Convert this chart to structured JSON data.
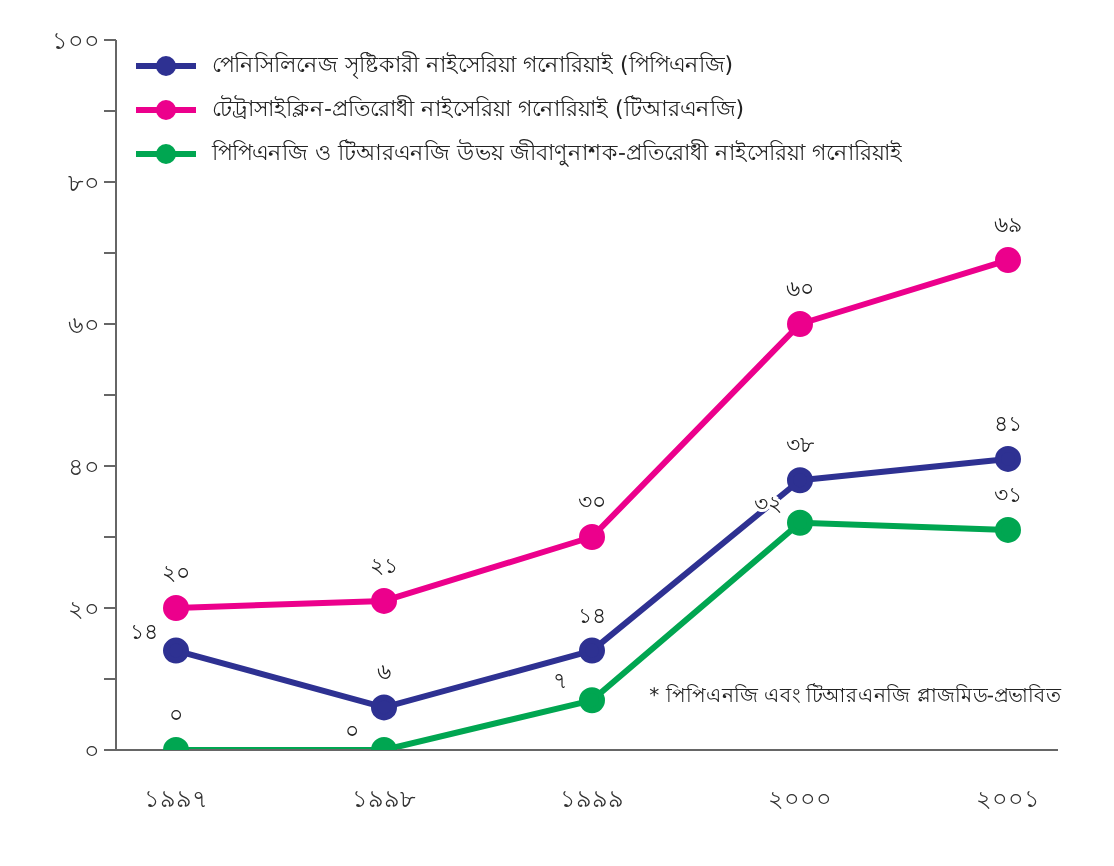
{
  "chart_data": {
    "type": "line",
    "categories": [
      "১৯৯৭",
      "১৯৯৮",
      "১৯৯৯",
      "২০০০",
      "২০০১"
    ],
    "series": [
      {
        "name": "পেনিসিলিনেজ সৃষ্টিকারী নাইসেরিয়া গনোরিয়াই (পিপিএনজি)",
        "color": "#2e3192",
        "values": [
          14,
          6,
          14,
          38,
          41
        ],
        "value_labels": [
          "১৪",
          "৬",
          "১৪",
          "৩৮",
          "৪১"
        ]
      },
      {
        "name": "টেট্রাসাইক্লিন-প্রতিরোধী নাইসেরিয়া গনোরিয়াই (টিআরএনজি)",
        "color": "#ec008c",
        "values": [
          20,
          21,
          30,
          60,
          69
        ],
        "value_labels": [
          "২০",
          "২১",
          "৩০",
          "৬০",
          "৬৯"
        ]
      },
      {
        "name": "পিপিএনজি ও টিআরএনজি উভয় জীবাণুনাশক-প্রতিরোধী নাইসেরিয়া গনোরিয়াই",
        "color": "#00a651",
        "values": [
          0,
          0,
          7,
          32,
          31
        ],
        "value_labels": [
          "০",
          "০",
          "৭",
          "৩২",
          "৩১"
        ]
      }
    ],
    "ylim": [
      0,
      100
    ],
    "yticks": [
      {
        "value": 0,
        "label": "০"
      },
      {
        "value": 10,
        "label": null
      },
      {
        "value": 20,
        "label": "২০"
      },
      {
        "value": 30,
        "label": null
      },
      {
        "value": 40,
        "label": "৪০"
      },
      {
        "value": 50,
        "label": null
      },
      {
        "value": 60,
        "label": "৬০"
      },
      {
        "value": 70,
        "label": null
      },
      {
        "value": 80,
        "label": "৮০"
      },
      {
        "value": 90,
        "label": null
      },
      {
        "value": 100,
        "label": "১০০"
      }
    ],
    "annotations": [
      "* পিপিএনজি এবং টিআরএনজি প্লাজমিড-প্রভাবিত"
    ],
    "legend": "top left",
    "grid": false,
    "marker": "circle",
    "line_style": "solid"
  }
}
